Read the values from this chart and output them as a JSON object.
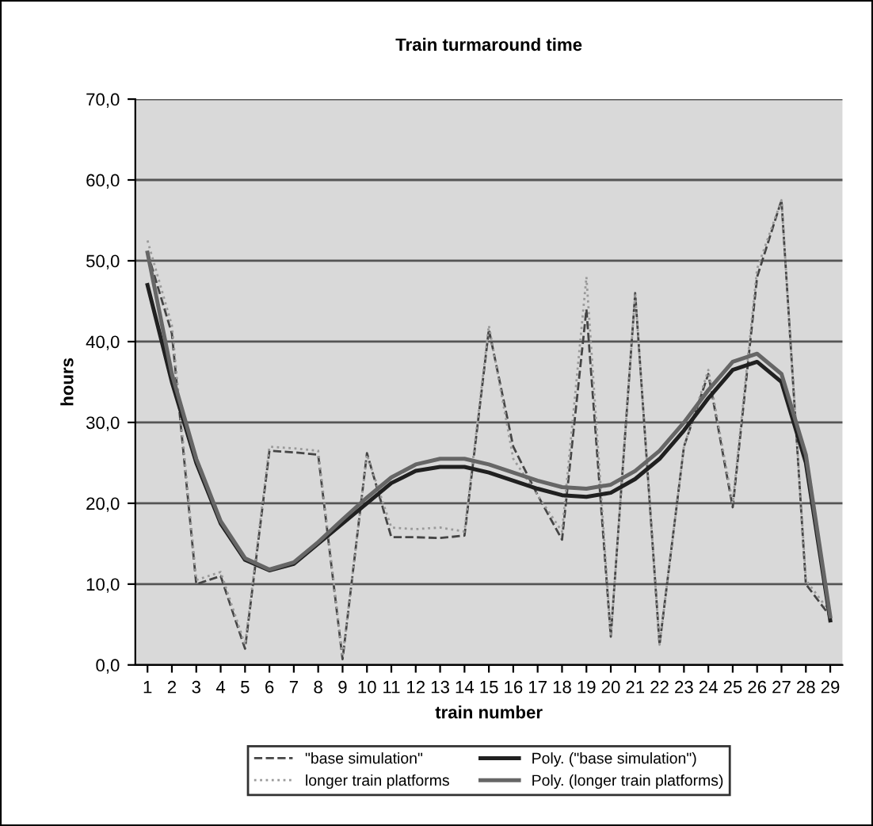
{
  "chart_data": {
    "type": "line",
    "title": "Train turmaround time",
    "xlabel": "train number",
    "ylabel": "hours",
    "categories": [
      "1",
      "2",
      "3",
      "4",
      "5",
      "6",
      "7",
      "8",
      "9",
      "10",
      "11",
      "12",
      "13",
      "14",
      "15",
      "16",
      "17",
      "18",
      "19",
      "20",
      "21",
      "22",
      "23",
      "24",
      "25",
      "26",
      "27",
      "28",
      "29"
    ],
    "series": [
      {
        "name": "\"base simulation\"",
        "color": "#454545",
        "line_style": "dashed",
        "values": [
          51,
          41,
          10,
          11,
          2,
          26.5,
          26.3,
          26,
          0.7,
          26.2,
          15.8,
          15.8,
          15.7,
          16,
          41.5,
          27,
          21,
          15.5,
          44,
          3.5,
          46,
          2.5,
          27,
          36,
          19.5,
          48,
          57.5,
          10,
          6
        ]
      },
      {
        "name": "longer train platforms",
        "color": "#9a9a9a",
        "line_style": "dotted",
        "values": [
          52.5,
          42,
          10.5,
          11.5,
          2.5,
          27,
          26.8,
          26.5,
          1,
          26,
          17,
          16.8,
          17,
          16.5,
          42,
          25.5,
          21,
          16.5,
          48,
          3.5,
          46,
          2.5,
          27,
          36.5,
          20,
          49,
          57.5,
          10.5,
          6.5
        ]
      },
      {
        "name": "Poly. (\"base simulation\")",
        "color": "#202020",
        "line_style": "solid",
        "values": [
          47,
          35,
          25,
          17.5,
          13,
          11.7,
          12.5,
          15,
          17.5,
          20,
          22.5,
          24,
          24.5,
          24.5,
          23.8,
          22.8,
          21.8,
          21,
          20.8,
          21.3,
          23,
          25.5,
          29,
          33,
          36.5,
          37.5,
          35,
          25,
          5.5
        ]
      },
      {
        "name": "Poly. (longer train platforms)",
        "color": "#666666",
        "line_style": "solid",
        "values": [
          51,
          36,
          25.5,
          17.8,
          13.2,
          11.8,
          12.7,
          15.2,
          18,
          20.7,
          23.2,
          24.8,
          25.5,
          25.5,
          24.8,
          23.8,
          22.8,
          22,
          21.8,
          22.3,
          24,
          26.5,
          30,
          34,
          37.5,
          38.5,
          36,
          26,
          6
        ]
      }
    ],
    "ylim": [
      0,
      70
    ],
    "yticks": [
      {
        "value": 0,
        "label": "0,0"
      },
      {
        "value": 10,
        "label": "10,0"
      },
      {
        "value": 20,
        "label": "20,0"
      },
      {
        "value": 30,
        "label": "30,0"
      },
      {
        "value": 40,
        "label": "40,0"
      },
      {
        "value": 50,
        "label": "50,0"
      },
      {
        "value": 60,
        "label": "60,0"
      },
      {
        "value": 70,
        "label": "70,0"
      }
    ],
    "grid": "y",
    "legend": "bottom",
    "marker": "none"
  }
}
